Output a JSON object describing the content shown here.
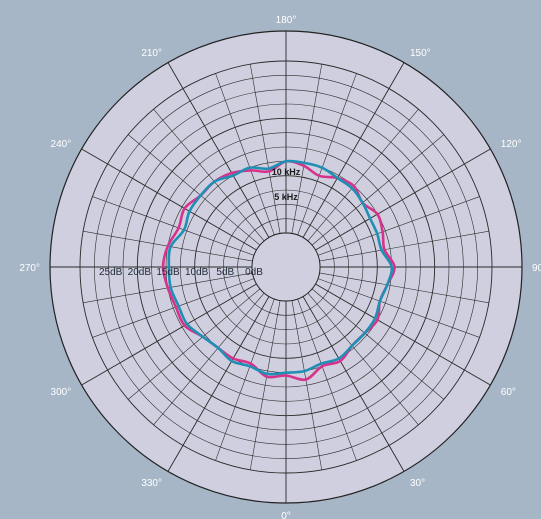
{
  "chart_data": {
    "type": "polar",
    "angle_labels": [
      {
        "deg": 180,
        "text": "180°"
      },
      {
        "deg": 150,
        "text": "150°"
      },
      {
        "deg": 120,
        "text": "120°"
      },
      {
        "deg": 90,
        "text": "90°"
      },
      {
        "deg": 60,
        "text": "60°"
      },
      {
        "deg": 30,
        "text": "30°"
      },
      {
        "deg": 0,
        "text": "0°"
      },
      {
        "deg": 330,
        "text": "330°"
      },
      {
        "deg": 300,
        "text": "300°"
      },
      {
        "deg": 270,
        "text": "270°"
      },
      {
        "deg": 240,
        "text": "240°"
      },
      {
        "deg": 210,
        "text": "210°"
      }
    ],
    "radial_axis": {
      "unit": "dB",
      "range": [
        -30,
        0
      ],
      "tick_labels": [
        {
          "value": -25,
          "text": "25dB"
        },
        {
          "value": -20,
          "text": "20dB"
        },
        {
          "value": -15,
          "text": "15dB"
        },
        {
          "value": -10,
          "text": "10dB"
        },
        {
          "value": -5,
          "text": "5dB"
        },
        {
          "value": 0,
          "text": "0dB"
        }
      ]
    },
    "angle_grid_step_deg": 10,
    "radial_grid_step_db": 2.5,
    "series": [
      {
        "name": "5 kHz",
        "color": "#d6338c",
        "angles_deg": [
          0,
          10,
          20,
          30,
          40,
          50,
          60,
          70,
          80,
          90,
          100,
          110,
          120,
          130,
          140,
          150,
          160,
          170,
          180,
          190,
          200,
          210,
          220,
          230,
          240,
          250,
          260,
          270,
          280,
          290,
          300,
          310,
          320,
          330,
          340,
          350
        ],
        "values_db": [
          -13.0,
          -14.0,
          -12.5,
          -13.0,
          -12.0,
          -12.0,
          -12.5,
          -11.5,
          -12.0,
          -13.0,
          -11.5,
          -12.0,
          -12.5,
          -11.5,
          -12.5,
          -12.0,
          -11.0,
          -12.0,
          -12.5,
          -11.0,
          -12.0,
          -13.0,
          -13.5,
          -13.5,
          -14.5,
          -14.0,
          -15.0,
          -15.5,
          -15.0,
          -14.5,
          -14.5,
          -13.0,
          -12.5,
          -12.5,
          -12.0,
          -13.5
        ]
      },
      {
        "name": "10 kHz",
        "color": "#1f8fb4",
        "angles_deg": [
          0,
          10,
          20,
          30,
          40,
          50,
          60,
          70,
          80,
          90,
          100,
          110,
          120,
          130,
          140,
          150,
          160,
          170,
          180,
          190,
          200,
          210,
          220,
          230,
          240,
          250,
          260,
          270,
          280,
          290,
          300,
          310,
          320,
          330,
          340,
          350
        ],
        "values_db": [
          -12.5,
          -12.5,
          -12.0,
          -12.5,
          -12.0,
          -12.0,
          -12.0,
          -11.5,
          -12.0,
          -12.5,
          -11.0,
          -11.0,
          -11.0,
          -11.5,
          -12.0,
          -12.0,
          -12.5,
          -12.5,
          -12.5,
          -11.5,
          -12.5,
          -12.5,
          -13.5,
          -13.5,
          -13.5,
          -13.0,
          -14.5,
          -14.5,
          -14.5,
          -14.0,
          -14.0,
          -13.0,
          -12.5,
          -13.0,
          -12.5,
          -13.0
        ]
      }
    ],
    "series_labels": [
      {
        "text": "5 kHz",
        "deg": 180,
        "db": -6.3
      },
      {
        "text": "10 kHz",
        "deg": 180,
        "db": -10.6
      }
    ],
    "grid": true
  }
}
